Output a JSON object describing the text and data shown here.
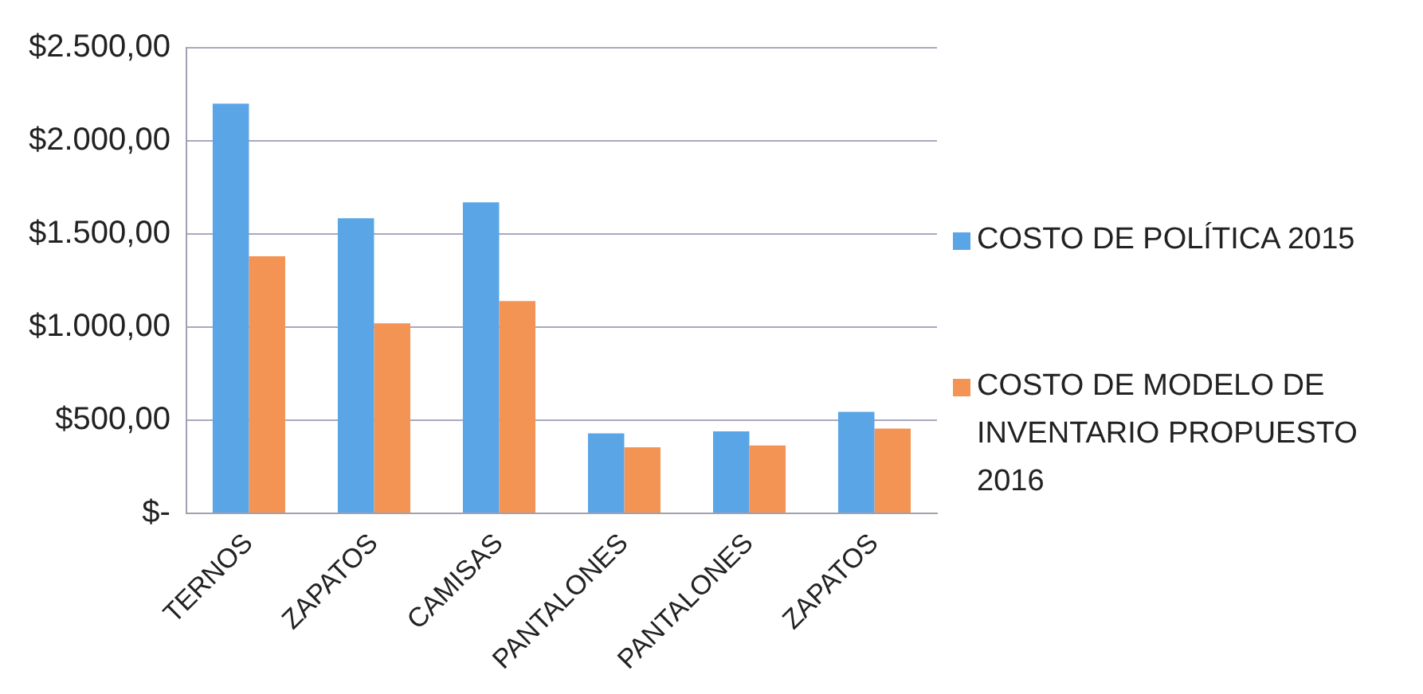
{
  "chart_data": {
    "type": "bar",
    "categories": [
      "TERNOS",
      "ZAPATOS",
      "CAMISAS",
      "PANTALONES",
      "PANTALONES",
      "ZAPATOS"
    ],
    "series": [
      {
        "name": "COSTO DE POLÍTICA 2015",
        "color": "#5aa5e6",
        "values": [
          2200,
          1585,
          1670,
          430,
          440,
          545
        ]
      },
      {
        "name": "COSTO DE MODELO DE INVENTARIO PROPUESTO 2016",
        "color": "#f39454",
        "values": [
          1380,
          1020,
          1140,
          355,
          365,
          455
        ]
      }
    ],
    "ylim": [
      0,
      2500
    ],
    "yticks": [
      {
        "value": 0,
        "label": "$-"
      },
      {
        "value": 500,
        "label": "$500,00"
      },
      {
        "value": 1000,
        "label": "$1.000,00"
      },
      {
        "value": 1500,
        "label": "$1.500,00"
      },
      {
        "value": 2000,
        "label": "$2.000,00"
      },
      {
        "value": 2500,
        "label": "$2.500,00"
      }
    ],
    "grid": "y",
    "legend": "right"
  }
}
